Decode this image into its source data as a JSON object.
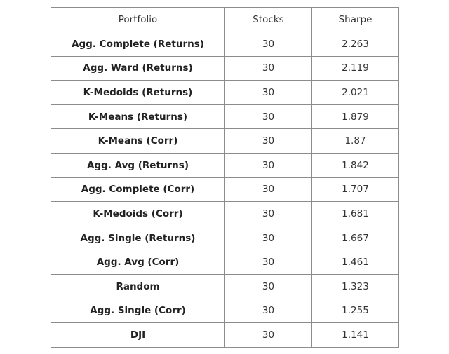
{
  "table": {
    "headers": [
      "Portfolio",
      "Stocks",
      "Sharpe"
    ],
    "rows": [
      {
        "portfolio": "Agg. Complete (Returns)",
        "stocks": "30",
        "sharpe": "2.263"
      },
      {
        "portfolio": "Agg. Ward (Returns)",
        "stocks": "30",
        "sharpe": "2.119"
      },
      {
        "portfolio": "K-Medoids (Returns)",
        "stocks": "30",
        "sharpe": "2.021"
      },
      {
        "portfolio": "K-Means (Returns)",
        "stocks": "30",
        "sharpe": "1.879"
      },
      {
        "portfolio": "K-Means (Corr)",
        "stocks": "30",
        "sharpe": "1.87"
      },
      {
        "portfolio": "Agg. Avg (Returns)",
        "stocks": "30",
        "sharpe": "1.842"
      },
      {
        "portfolio": "Agg. Complete (Corr)",
        "stocks": "30",
        "sharpe": "1.707"
      },
      {
        "portfolio": "K-Medoids (Corr)",
        "stocks": "30",
        "sharpe": "1.681"
      },
      {
        "portfolio": "Agg. Single (Returns)",
        "stocks": "30",
        "sharpe": "1.667"
      },
      {
        "portfolio": "Agg. Avg (Corr)",
        "stocks": "30",
        "sharpe": "1.461"
      },
      {
        "portfolio": "Random",
        "stocks": "30",
        "sharpe": "1.323"
      },
      {
        "portfolio": "Agg. Single (Corr)",
        "stocks": "30",
        "sharpe": "1.255"
      },
      {
        "portfolio": "DJI",
        "stocks": "30",
        "sharpe": "1.141"
      }
    ]
  }
}
